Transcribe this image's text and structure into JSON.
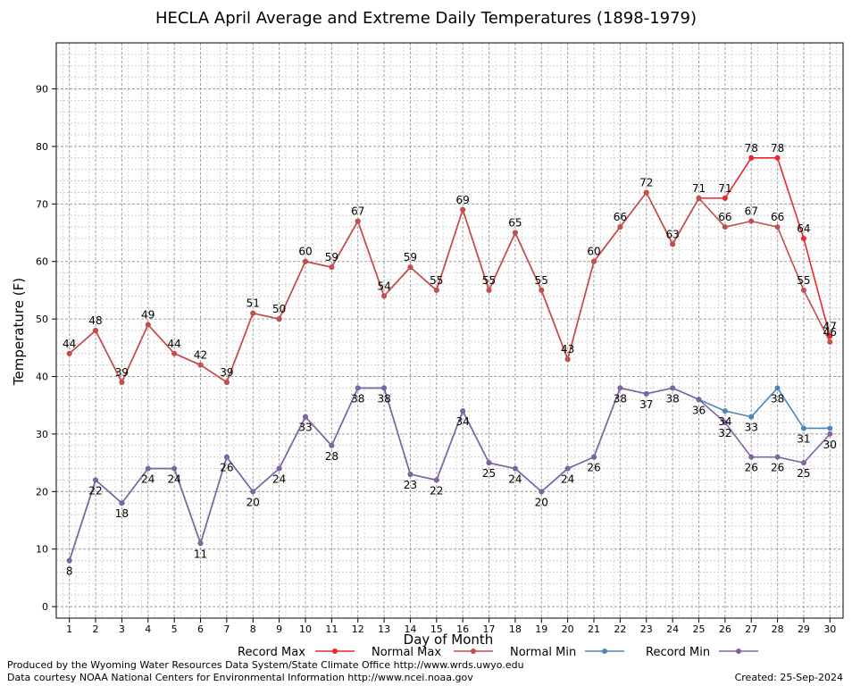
{
  "chart_data": {
    "type": "line",
    "title": "HECLA April Average and Extreme Daily Temperatures (1898-1979)",
    "xlabel": "Day of Month",
    "ylabel": "Temperature (F)",
    "x": [
      1,
      2,
      3,
      4,
      5,
      6,
      7,
      8,
      9,
      10,
      11,
      12,
      13,
      14,
      15,
      16,
      17,
      18,
      19,
      20,
      21,
      22,
      23,
      24,
      25,
      26,
      27,
      28,
      29,
      30
    ],
    "xlim": [
      0.5,
      30.5
    ],
    "ylim": [
      -2,
      98
    ],
    "yticks": [
      0,
      10,
      20,
      30,
      40,
      50,
      60,
      70,
      80,
      90
    ],
    "grid": true,
    "legend_position": "bottom",
    "series": [
      {
        "name": "Record Max",
        "color": "#e8262b",
        "values": [
          44,
          48,
          39,
          49,
          44,
          42,
          39,
          51,
          50,
          60,
          59,
          67,
          54,
          59,
          55,
          69,
          55,
          65,
          55,
          43,
          60,
          66,
          72,
          63,
          71,
          71,
          78,
          78,
          64,
          47
        ]
      },
      {
        "name": "Normal Max",
        "color": "#c0504d",
        "values": [
          44,
          48,
          39,
          49,
          44,
          42,
          39,
          51,
          50,
          60,
          59,
          67,
          54,
          59,
          55,
          69,
          55,
          65,
          55,
          43,
          60,
          66,
          72,
          63,
          71,
          66,
          67,
          66,
          55,
          46
        ]
      },
      {
        "name": "Normal Min",
        "color": "#4a86b8",
        "values": [
          8,
          22,
          18,
          24,
          24,
          11,
          26,
          20,
          24,
          33,
          28,
          38,
          38,
          23,
          22,
          34,
          25,
          24,
          20,
          24,
          26,
          38,
          37,
          38,
          36,
          34,
          33,
          38,
          31,
          31
        ]
      },
      {
        "name": "Record Min",
        "color": "#8064a2",
        "values": [
          8,
          22,
          18,
          24,
          24,
          11,
          26,
          20,
          24,
          33,
          28,
          38,
          38,
          23,
          22,
          34,
          25,
          24,
          20,
          24,
          26,
          38,
          37,
          38,
          36,
          32,
          26,
          26,
          25,
          30
        ]
      }
    ],
    "labels": {
      "upper": [
        {
          "x": 1,
          "v": "44"
        },
        {
          "x": 2,
          "v": "48"
        },
        {
          "x": 3,
          "v": "39"
        },
        {
          "x": 4,
          "v": "49"
        },
        {
          "x": 5,
          "v": "44"
        },
        {
          "x": 6,
          "v": "42"
        },
        {
          "x": 7,
          "v": "39"
        },
        {
          "x": 8,
          "v": "51"
        },
        {
          "x": 9,
          "v": "50"
        },
        {
          "x": 10,
          "v": "60"
        },
        {
          "x": 11,
          "v": "59"
        },
        {
          "x": 12,
          "v": "67"
        },
        {
          "x": 13,
          "v": "54"
        },
        {
          "x": 14,
          "v": "59"
        },
        {
          "x": 15,
          "v": "55"
        },
        {
          "x": 16,
          "v": "69"
        },
        {
          "x": 17,
          "v": "55"
        },
        {
          "x": 18,
          "v": "65"
        },
        {
          "x": 19,
          "v": "55"
        },
        {
          "x": 20,
          "v": "43"
        },
        {
          "x": 21,
          "v": "60"
        },
        {
          "x": 22,
          "v": "66"
        },
        {
          "x": 23,
          "v": "72"
        },
        {
          "x": 24,
          "v": "63"
        },
        {
          "x": 25,
          "v": "71"
        },
        {
          "x": 26,
          "v": "71"
        },
        {
          "x": 26,
          "v": "66"
        },
        {
          "x": 27,
          "v": "78"
        },
        {
          "x": 27,
          "v": "67"
        },
        {
          "x": 28,
          "v": "78"
        },
        {
          "x": 28,
          "v": "66"
        },
        {
          "x": 29,
          "v": "64"
        },
        {
          "x": 29,
          "v": "55"
        },
        {
          "x": 30,
          "v": "47"
        },
        {
          "x": 30,
          "v": "46"
        }
      ],
      "lower": [
        {
          "x": 1,
          "v": "8"
        },
        {
          "x": 2,
          "v": "22"
        },
        {
          "x": 3,
          "v": "18"
        },
        {
          "x": 4,
          "v": "24"
        },
        {
          "x": 5,
          "v": "24"
        },
        {
          "x": 6,
          "v": "11"
        },
        {
          "x": 7,
          "v": "26"
        },
        {
          "x": 8,
          "v": "20"
        },
        {
          "x": 9,
          "v": "24"
        },
        {
          "x": 10,
          "v": "33"
        },
        {
          "x": 11,
          "v": "28"
        },
        {
          "x": 12,
          "v": "38"
        },
        {
          "x": 13,
          "v": "38"
        },
        {
          "x": 14,
          "v": "23"
        },
        {
          "x": 15,
          "v": "22"
        },
        {
          "x": 16,
          "v": "34"
        },
        {
          "x": 17,
          "v": "25"
        },
        {
          "x": 18,
          "v": "24"
        },
        {
          "x": 19,
          "v": "20"
        },
        {
          "x": 20,
          "v": "24"
        },
        {
          "x": 21,
          "v": "26"
        },
        {
          "x": 22,
          "v": "38"
        },
        {
          "x": 23,
          "v": "37"
        },
        {
          "x": 24,
          "v": "38"
        },
        {
          "x": 25,
          "v": "36"
        },
        {
          "x": 26,
          "v": "34"
        },
        {
          "x": 26,
          "v": "32"
        },
        {
          "x": 27,
          "v": "33"
        },
        {
          "x": 27,
          "v": "26"
        },
        {
          "x": 28,
          "v": "38"
        },
        {
          "x": 28,
          "v": "26"
        },
        {
          "x": 29,
          "v": "31"
        },
        {
          "x": 29,
          "v": "25"
        },
        {
          "x": 30,
          "v": "30"
        }
      ]
    }
  },
  "footer": {
    "line1": "Produced by the Wyoming Water Resources Data System/State Climate Office http://www.wrds.uwyo.edu",
    "line2": "Data courtesy NOAA National Centers for Environmental Information http://www.ncei.noaa.gov",
    "created": "Created:  25-Sep-2024"
  }
}
